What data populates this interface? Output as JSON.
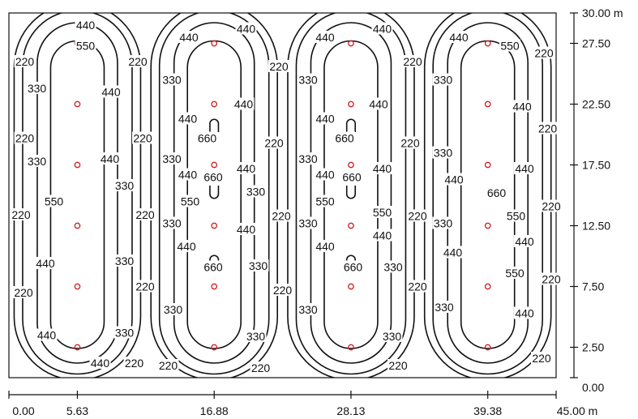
{
  "diagram": {
    "x_axis": {
      "ticks": [
        {
          "value": 0,
          "label": "0.00"
        },
        {
          "value": 5.63,
          "label": "5.63"
        },
        {
          "value": 16.88,
          "label": "16.88"
        },
        {
          "value": 28.13,
          "label": "28.13"
        },
        {
          "value": 39.38,
          "label": "39.38"
        },
        {
          "value": 45,
          "label": "45.00 m"
        }
      ]
    },
    "y_axis": {
      "ticks": [
        {
          "value": 0,
          "label": "0.00"
        },
        {
          "value": 2.5,
          "label": "2.50"
        },
        {
          "value": 7.5,
          "label": "7.50"
        },
        {
          "value": 12.5,
          "label": "12.50"
        },
        {
          "value": 17.5,
          "label": "17.50"
        },
        {
          "value": 22.5,
          "label": "22.50"
        },
        {
          "value": 27.5,
          "label": "27.50"
        },
        {
          "value": 30,
          "label": "30.00 m"
        }
      ]
    },
    "area": {
      "width_m": 45,
      "depth_m": 30
    },
    "luminaire_rows_x_m": [
      5.63,
      16.88,
      28.13,
      39.38
    ],
    "luminaire_y_m": [
      2.5,
      7.5,
      12.5,
      17.5,
      22.5,
      27.5
    ],
    "contour_levels": [
      220,
      330,
      440,
      550,
      660
    ],
    "contour_labels": [
      {
        "text": "440",
        "x": 6.3,
        "y": 29.0
      },
      {
        "text": "550",
        "x": 6.3,
        "y": 27.3
      },
      {
        "text": "220",
        "x": 1.3,
        "y": 26.0
      },
      {
        "text": "220",
        "x": 10.6,
        "y": 26.0
      },
      {
        "text": "330",
        "x": 2.3,
        "y": 23.8
      },
      {
        "text": "440",
        "x": 8.4,
        "y": 23.5
      },
      {
        "text": "220",
        "x": 1.3,
        "y": 19.7
      },
      {
        "text": "220",
        "x": 11.0,
        "y": 19.7
      },
      {
        "text": "330",
        "x": 2.3,
        "y": 17.8
      },
      {
        "text": "440",
        "x": 8.3,
        "y": 18.0
      },
      {
        "text": "330",
        "x": 9.5,
        "y": 15.8
      },
      {
        "text": "550",
        "x": 3.7,
        "y": 14.5
      },
      {
        "text": "220",
        "x": 1.0,
        "y": 13.4
      },
      {
        "text": "220",
        "x": 11.2,
        "y": 13.4
      },
      {
        "text": "330",
        "x": 9.5,
        "y": 9.6
      },
      {
        "text": "440",
        "x": 3.0,
        "y": 9.4
      },
      {
        "text": "220",
        "x": 11.2,
        "y": 7.5
      },
      {
        "text": "220",
        "x": 1.2,
        "y": 7.0
      },
      {
        "text": "330",
        "x": 9.5,
        "y": 3.7
      },
      {
        "text": "440",
        "x": 3.1,
        "y": 3.5
      },
      {
        "text": "440",
        "x": 7.5,
        "y": 1.2
      },
      {
        "text": "220",
        "x": 10.3,
        "y": 1.2
      },
      {
        "text": "440",
        "x": 14.8,
        "y": 28.0
      },
      {
        "text": "440",
        "x": 19.5,
        "y": 28.7
      },
      {
        "text": "330",
        "x": 13.4,
        "y": 24.5
      },
      {
        "text": "220",
        "x": 22.2,
        "y": 25.6
      },
      {
        "text": "440",
        "x": 19.3,
        "y": 22.5
      },
      {
        "text": "440",
        "x": 14.7,
        "y": 21.3
      },
      {
        "text": "660",
        "x": 16.3,
        "y": 19.7
      },
      {
        "text": "330",
        "x": 13.4,
        "y": 18.0
      },
      {
        "text": "220",
        "x": 21.8,
        "y": 19.3
      },
      {
        "text": "440",
        "x": 14.7,
        "y": 16.7
      },
      {
        "text": "440",
        "x": 19.5,
        "y": 17.2
      },
      {
        "text": "660",
        "x": 16.8,
        "y": 16.5
      },
      {
        "text": "550",
        "x": 14.9,
        "y": 14.5
      },
      {
        "text": "330",
        "x": 20.3,
        "y": 15.3
      },
      {
        "text": "220",
        "x": 22.4,
        "y": 13.3
      },
      {
        "text": "330",
        "x": 13.4,
        "y": 12.7
      },
      {
        "text": "440",
        "x": 19.5,
        "y": 12.2
      },
      {
        "text": "440",
        "x": 14.6,
        "y": 10.8
      },
      {
        "text": "660",
        "x": 16.8,
        "y": 9.1
      },
      {
        "text": "330",
        "x": 20.5,
        "y": 9.2
      },
      {
        "text": "220",
        "x": 22.5,
        "y": 7.2
      },
      {
        "text": "330",
        "x": 13.5,
        "y": 5.6
      },
      {
        "text": "330",
        "x": 20.3,
        "y": 3.4
      },
      {
        "text": "220",
        "x": 13.1,
        "y": 1.0
      },
      {
        "text": "220",
        "x": 20.7,
        "y": 0.8
      },
      {
        "text": "440",
        "x": 26.0,
        "y": 28.0
      },
      {
        "text": "440",
        "x": 30.7,
        "y": 28.7
      },
      {
        "text": "330",
        "x": 24.6,
        "y": 24.5
      },
      {
        "text": "220",
        "x": 33.2,
        "y": 26.0
      },
      {
        "text": "440",
        "x": 30.4,
        "y": 22.5
      },
      {
        "text": "440",
        "x": 26.0,
        "y": 21.3
      },
      {
        "text": "660",
        "x": 27.6,
        "y": 19.7
      },
      {
        "text": "330",
        "x": 24.6,
        "y": 18.0
      },
      {
        "text": "220",
        "x": 33.0,
        "y": 19.3
      },
      {
        "text": "440",
        "x": 26.0,
        "y": 16.7
      },
      {
        "text": "440",
        "x": 30.7,
        "y": 17.2
      },
      {
        "text": "660",
        "x": 28.2,
        "y": 16.5
      },
      {
        "text": "550",
        "x": 26.0,
        "y": 14.5
      },
      {
        "text": "550",
        "x": 30.7,
        "y": 13.6
      },
      {
        "text": "220",
        "x": 33.6,
        "y": 13.3
      },
      {
        "text": "330",
        "x": 24.6,
        "y": 12.7
      },
      {
        "text": "440",
        "x": 30.7,
        "y": 11.7
      },
      {
        "text": "440",
        "x": 26.0,
        "y": 10.8
      },
      {
        "text": "660",
        "x": 28.3,
        "y": 9.1
      },
      {
        "text": "330",
        "x": 31.6,
        "y": 9.1
      },
      {
        "text": "220",
        "x": 33.6,
        "y": 7.5
      },
      {
        "text": "330",
        "x": 24.6,
        "y": 5.6
      },
      {
        "text": "330",
        "x": 31.5,
        "y": 3.4
      },
      {
        "text": "220",
        "x": 32.0,
        "y": 1.0
      },
      {
        "text": "440",
        "x": 37.0,
        "y": 28.0
      },
      {
        "text": "550",
        "x": 41.2,
        "y": 27.3
      },
      {
        "text": "220",
        "x": 44.0,
        "y": 26.7
      },
      {
        "text": "330",
        "x": 35.7,
        "y": 24.5
      },
      {
        "text": "440",
        "x": 42.2,
        "y": 22.3
      },
      {
        "text": "220",
        "x": 44.3,
        "y": 20.5
      },
      {
        "text": "330",
        "x": 35.7,
        "y": 18.5
      },
      {
        "text": "440",
        "x": 36.6,
        "y": 16.3
      },
      {
        "text": "440",
        "x": 42.4,
        "y": 17.2
      },
      {
        "text": "660",
        "x": 40.1,
        "y": 15.2
      },
      {
        "text": "220",
        "x": 44.6,
        "y": 14.1
      },
      {
        "text": "550",
        "x": 41.7,
        "y": 13.3
      },
      {
        "text": "330",
        "x": 35.7,
        "y": 12.7
      },
      {
        "text": "440",
        "x": 42.4,
        "y": 11.2
      },
      {
        "text": "440",
        "x": 36.5,
        "y": 10.3
      },
      {
        "text": "550",
        "x": 41.6,
        "y": 8.6
      },
      {
        "text": "220",
        "x": 44.6,
        "y": 8.1
      },
      {
        "text": "330",
        "x": 35.8,
        "y": 5.8
      },
      {
        "text": "440",
        "x": 42.4,
        "y": 5.3
      },
      {
        "text": "220",
        "x": 43.8,
        "y": 1.6
      }
    ]
  }
}
